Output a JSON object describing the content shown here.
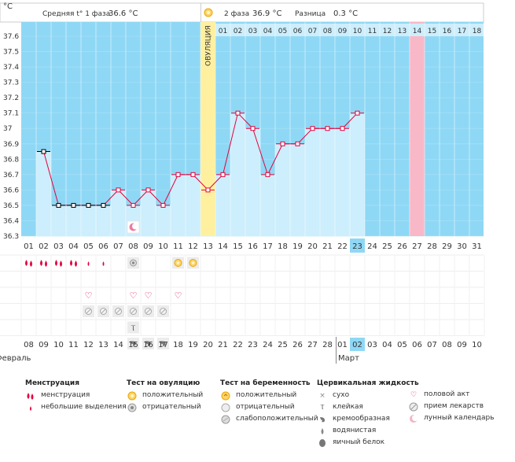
{
  "header": {
    "celsius_label": "°C",
    "phase1_label": "Средняя t° 1 фаза",
    "phase1_value": "36.6 °C",
    "phase2_label": "2 фаза",
    "phase2_value": "36.9 °C",
    "diff_label": "Разница",
    "diff_value": "0.3 °C"
  },
  "chart_data": {
    "type": "bar",
    "title": "",
    "ylabel": "°C",
    "ylim": [
      36.3,
      37.6
    ],
    "yticks": [
      "37.6",
      "37.5",
      "37.4",
      "37.3",
      "37.2",
      "37.1",
      "37",
      "36.9",
      "36.8",
      "36.7",
      "36.6",
      "36.5",
      "36.4",
      "36.3"
    ],
    "cycle_days": [
      "01",
      "02",
      "03",
      "04",
      "05",
      "06",
      "07",
      "08",
      "09",
      "10",
      "11",
      "12",
      "13",
      "14",
      "15",
      "16",
      "17",
      "18",
      "19",
      "20",
      "21",
      "22",
      "23",
      "24",
      "25",
      "26",
      "27",
      "28",
      "29",
      "30",
      "31"
    ],
    "phase_days": [
      "01",
      "02",
      "03",
      "04",
      "05",
      "06",
      "07",
      "08",
      "09",
      "10",
      "11",
      "12",
      "13",
      "14",
      "15",
      "16",
      "17",
      "18"
    ],
    "temperatures": [
      null,
      36.85,
      36.5,
      36.5,
      36.5,
      36.5,
      36.6,
      36.5,
      36.6,
      36.5,
      36.7,
      36.7,
      36.6,
      36.7,
      37.1,
      37.0,
      36.7,
      36.9,
      36.9,
      37.0,
      37.0,
      37.0,
      37.1,
      null,
      null,
      null,
      null,
      null,
      null,
      null,
      null
    ],
    "ovulation_day": 13,
    "ovulation_label": "ОВУЛЯЦИЯ",
    "expected_period_day": 27,
    "current_day": 23,
    "moon_day": 8,
    "calendar_dates": [
      "08",
      "09",
      "10",
      "11",
      "12",
      "13",
      "14",
      "15",
      "16",
      "17",
      "18",
      "19",
      "20",
      "21",
      "22",
      "23",
      "24",
      "25",
      "26",
      "27",
      "28",
      "01",
      "02",
      "03",
      "04",
      "05",
      "06",
      "07",
      "08",
      "09",
      "10"
    ],
    "weekend_indices": [
      0,
      1,
      7,
      8,
      14,
      15,
      21,
      28,
      29
    ],
    "month_feb": "Февраль",
    "month_mar": "Март",
    "markers": {
      "menstruation_heavy": [
        1,
        2,
        3,
        4
      ],
      "menstruation_light": [
        5,
        6
      ],
      "ovulation_test_negative": [
        8
      ],
      "ovulation_test_positive": [
        11,
        12
      ],
      "intercourse": [
        5,
        8,
        9,
        11
      ],
      "medication": [
        5,
        6,
        7,
        8,
        9,
        10
      ],
      "sticky": [
        8
      ],
      "creamy": [
        8,
        9,
        10
      ]
    }
  },
  "legend": {
    "menstruation": {
      "title": "Менструация",
      "items": [
        "менструация",
        "небольшие выделения"
      ]
    },
    "ovulation_test": {
      "title": "Тест на овуляцию",
      "items": [
        "положительный",
        "отрицательный"
      ]
    },
    "pregnancy_test": {
      "title": "Тест на беременность",
      "items": [
        "положительный",
        "отрицательный",
        "слабоположительный"
      ]
    },
    "cervical": {
      "title": "Цервикальная жидкость",
      "items": [
        "сухо",
        "клейкая",
        "кремообразная",
        "водянистая",
        "яичный белок"
      ]
    },
    "other": {
      "items": [
        "половой акт",
        "прием лекарств",
        "лунный календарь"
      ]
    }
  },
  "colors": {
    "sky": "#8fd8f5",
    "bar": "#cdeefc",
    "ovulation": "#fff0a0",
    "period": "#f8b8c8",
    "line": "#e2003b",
    "weekend_text": "#e2003b"
  }
}
